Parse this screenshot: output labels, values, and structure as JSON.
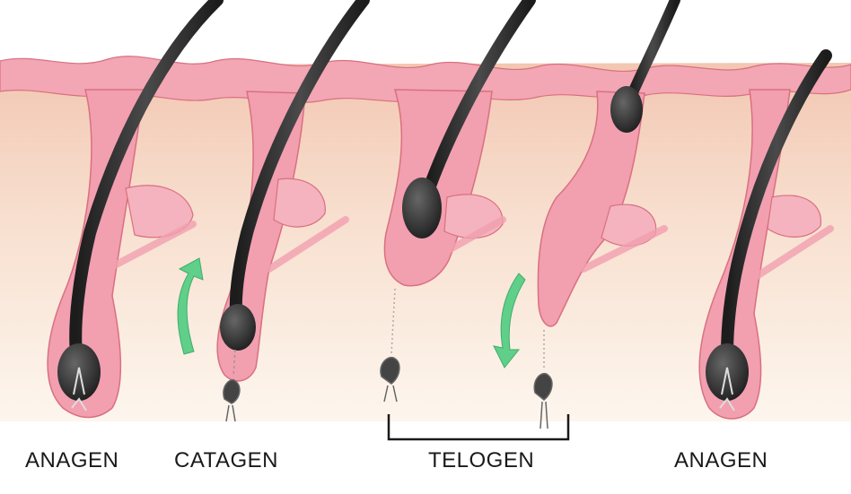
{
  "labels": {
    "stage1": "ANAGEN",
    "stage2": "CATAGEN",
    "stage3": "TELOGEN",
    "stage4": "ANAGEN"
  },
  "colors": {
    "skin_top": "#f2c7b2",
    "skin_bottom": "#fdf5ec",
    "epidermis": "#f3a6b4",
    "follicle": "#f29fb0",
    "follicle_edge": "#d9707f",
    "hair": "#2b2b2b",
    "arrow": "#5fcf8a",
    "bracket": "#1a1a1a"
  }
}
